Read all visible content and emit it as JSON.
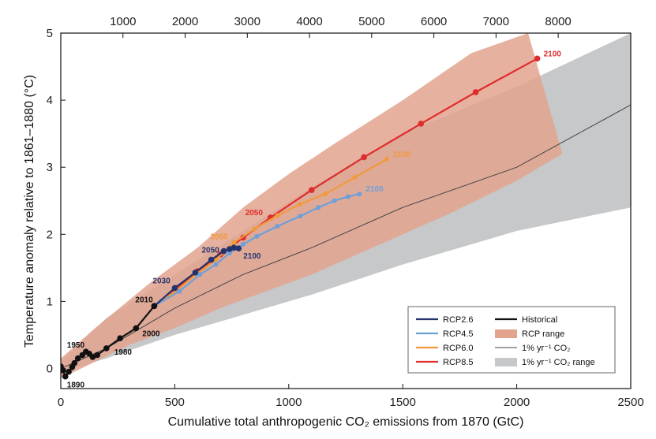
{
  "chart_data": {
    "type": "line",
    "xlabel": "Cumulative total anthropogenic CO₂ emissions from 1870 (GtC)",
    "ylabel": "Temperature anomaly relative to 1861–1880 (°C)",
    "xlim": [
      0,
      2500
    ],
    "ylim": [
      -0.3,
      5
    ],
    "x_ticks": [
      "0",
      "500",
      "1000",
      "1500",
      "2000",
      "2500"
    ],
    "y_ticks": [
      "0",
      "1",
      "2",
      "3",
      "4",
      "5"
    ],
    "top_axis_ticks": [
      "1000",
      "2000",
      "3000",
      "4000",
      "5000",
      "6000",
      "7000",
      "8000"
    ],
    "top_axis_positions_gtc": [
      272.7,
      545.4,
      818.2,
      1090.9,
      1363.6,
      1636.4,
      1909.1,
      2181.8
    ],
    "grid": false,
    "legend_position": "bottom-right",
    "colors": {
      "rcp26": "#24336e",
      "rcp45": "#6e9fd8",
      "rcp60": "#f09a3c",
      "rcp85": "#de2d2d",
      "historical": "#111111",
      "rcp_range": "#e3a38f",
      "pct_line": "#444444",
      "pct_range": "#c6c8c9"
    },
    "series": [
      {
        "key": "historical",
        "name": "Historical",
        "points": [
          [
            0,
            0.03
          ],
          [
            10,
            -0.03
          ],
          [
            20,
            -0.12
          ],
          [
            35,
            -0.05
          ],
          [
            50,
            0.02
          ],
          [
            60,
            0.08
          ],
          [
            75,
            0.15
          ],
          [
            95,
            0.2
          ],
          [
            110,
            0.25
          ],
          [
            125,
            0.22
          ],
          [
            140,
            0.17
          ],
          [
            160,
            0.2
          ],
          [
            200,
            0.3
          ],
          [
            260,
            0.45
          ],
          [
            330,
            0.6
          ],
          [
            410,
            0.93
          ]
        ]
      },
      {
        "key": "rcp26",
        "name": "RCP2.6",
        "points": [
          [
            410,
            0.93
          ],
          [
            500,
            1.2
          ],
          [
            590,
            1.43
          ],
          [
            660,
            1.62
          ],
          [
            715,
            1.75
          ],
          [
            740,
            1.78
          ],
          [
            760,
            1.8
          ],
          [
            780,
            1.79
          ]
        ]
      },
      {
        "key": "rcp45",
        "name": "RCP4.5",
        "points": [
          [
            410,
            0.93
          ],
          [
            520,
            1.15
          ],
          [
            610,
            1.4
          ],
          [
            680,
            1.55
          ],
          [
            740,
            1.72
          ],
          [
            800,
            1.85
          ],
          [
            860,
            1.97
          ],
          [
            950,
            2.12
          ],
          [
            1050,
            2.27
          ],
          [
            1130,
            2.4
          ],
          [
            1200,
            2.5
          ],
          [
            1260,
            2.56
          ],
          [
            1310,
            2.6
          ]
        ]
      },
      {
        "key": "rcp60",
        "name": "RCP6.0",
        "points": [
          [
            410,
            0.93
          ],
          [
            510,
            1.17
          ],
          [
            600,
            1.42
          ],
          [
            680,
            1.62
          ],
          [
            760,
            1.88
          ],
          [
            850,
            2.08
          ],
          [
            950,
            2.28
          ],
          [
            1050,
            2.45
          ],
          [
            1160,
            2.6
          ],
          [
            1290,
            2.85
          ],
          [
            1430,
            3.12
          ]
        ]
      },
      {
        "key": "rcp85",
        "name": "RCP8.5",
        "points": [
          [
            410,
            0.93
          ],
          [
            510,
            1.2
          ],
          [
            600,
            1.45
          ],
          [
            700,
            1.7
          ],
          [
            800,
            1.95
          ],
          [
            920,
            2.25
          ],
          [
            1100,
            2.66
          ],
          [
            1330,
            3.15
          ],
          [
            1580,
            3.65
          ],
          [
            1820,
            4.12
          ],
          [
            2090,
            4.62
          ]
        ]
      },
      {
        "key": "pct",
        "name": "1% yr⁻¹ CO₂",
        "points": [
          [
            0,
            0
          ],
          [
            200,
            0.3
          ],
          [
            500,
            0.9
          ],
          [
            800,
            1.4
          ],
          [
            1100,
            1.8
          ],
          [
            1500,
            2.4
          ],
          [
            2000,
            3.0
          ],
          [
            2500,
            3.93
          ]
        ]
      }
    ],
    "ranges": [
      {
        "key": "pct_range",
        "name": "1% yr⁻¹ CO₂ range",
        "upper": [
          [
            0,
            0.1
          ],
          [
            200,
            0.75
          ],
          [
            500,
            1.4
          ],
          [
            800,
            2.05
          ],
          [
            1100,
            2.7
          ],
          [
            1500,
            3.5
          ],
          [
            2000,
            4.2
          ],
          [
            2500,
            5.0
          ]
        ],
        "lower": [
          [
            0,
            -0.05
          ],
          [
            200,
            0.15
          ],
          [
            500,
            0.5
          ],
          [
            800,
            0.8
          ],
          [
            1100,
            1.1
          ],
          [
            1500,
            1.55
          ],
          [
            2000,
            2.05
          ],
          [
            2500,
            2.4
          ]
        ]
      },
      {
        "key": "rcp_range",
        "name": "RCP range",
        "upper": [
          [
            0,
            0.15
          ],
          [
            150,
            0.6
          ],
          [
            400,
            1.3
          ],
          [
            600,
            1.8
          ],
          [
            800,
            2.4
          ],
          [
            1000,
            2.9
          ],
          [
            1200,
            3.35
          ],
          [
            1500,
            4.0
          ],
          [
            1800,
            4.7
          ],
          [
            2050,
            5.0
          ]
        ],
        "lower": [
          [
            0,
            -0.15
          ],
          [
            150,
            0.1
          ],
          [
            300,
            0.35
          ],
          [
            500,
            0.6
          ],
          [
            700,
            0.9
          ],
          [
            900,
            1.15
          ],
          [
            1100,
            1.4
          ],
          [
            1400,
            1.85
          ],
          [
            1700,
            2.3
          ],
          [
            2000,
            2.8
          ],
          [
            2200,
            3.2
          ]
        ]
      }
    ],
    "annotations": [
      {
        "text": "1890",
        "x": 20,
        "y": -0.12,
        "color": "#111111"
      },
      {
        "text": "1950",
        "x": 110,
        "y": 0.25,
        "color": "#111111"
      },
      {
        "text": "1980",
        "x": 200,
        "y": 0.3,
        "color": "#111111"
      },
      {
        "text": "2000",
        "x": 330,
        "y": 0.6,
        "color": "#111111"
      },
      {
        "text": "2010",
        "x": 410,
        "y": 0.93,
        "color": "#111111"
      },
      {
        "text": "2030",
        "x": 500,
        "y": 1.2,
        "color": "#24336e"
      },
      {
        "text": "2050",
        "x": 715,
        "y": 1.75,
        "color": "#24336e"
      },
      {
        "text": "2100",
        "x": 780,
        "y": 1.79,
        "color": "#24336e"
      },
      {
        "text": "2050",
        "x": 760,
        "y": 1.88,
        "color": "#f09a3c"
      },
      {
        "text": "2050",
        "x": 920,
        "y": 2.25,
        "color": "#de2d2d"
      },
      {
        "text": "2100",
        "x": 1430,
        "y": 3.12,
        "color": "#f09a3c"
      },
      {
        "text": "2100",
        "x": 1310,
        "y": 2.6,
        "color": "#6e9fd8"
      },
      {
        "text": "2100",
        "x": 2090,
        "y": 4.62,
        "color": "#de2d2d"
      }
    ],
    "legend": [
      {
        "label": "RCP2.6",
        "kind": "line",
        "color": "#24336e"
      },
      {
        "label": "RCP4.5",
        "kind": "line",
        "color": "#6e9fd8"
      },
      {
        "label": "RCP6.0",
        "kind": "line",
        "color": "#f09a3c"
      },
      {
        "label": "RCP8.5",
        "kind": "line",
        "color": "#de2d2d"
      },
      {
        "label": "Historical",
        "kind": "line",
        "color": "#111111"
      },
      {
        "label": "RCP range",
        "kind": "band",
        "color": "#e3a38f"
      },
      {
        "label": "1% yr⁻¹ CO₂",
        "kind": "thin",
        "color": "#444444"
      },
      {
        "label": "1% yr⁻¹ CO₂ range",
        "kind": "band",
        "color": "#c6c8c9"
      }
    ]
  }
}
